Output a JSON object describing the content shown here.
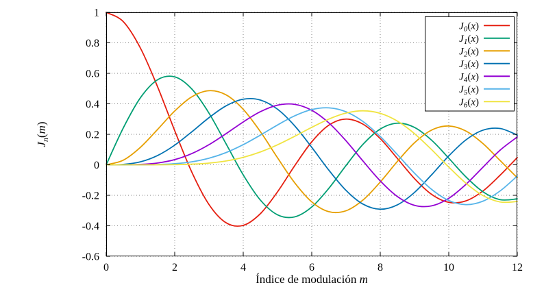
{
  "chart_data": {
    "type": "line",
    "title": "",
    "xlabel": "Índice de modulación m",
    "ylabel": "J_n(m)",
    "xlabel_parts": [
      {
        "t": "Índice de modulación ",
        "i": 0,
        "s": 0
      },
      {
        "t": "m",
        "i": 1,
        "s": 0
      }
    ],
    "ylabel_parts": [
      {
        "t": "J",
        "i": 1,
        "s": 0
      },
      {
        "t": "n",
        "i": 1,
        "s": 1
      },
      {
        "t": "(",
        "i": 0,
        "s": 0
      },
      {
        "t": "m",
        "i": 1,
        "s": 0
      },
      {
        "t": ")",
        "i": 0,
        "s": 0
      }
    ],
    "xlim": [
      0,
      12
    ],
    "ylim": [
      -0.6,
      1
    ],
    "x_ticks": [
      0,
      2,
      4,
      6,
      8,
      10,
      12
    ],
    "x_tick_labels": [
      "0",
      "2",
      "4",
      "6",
      "8",
      "10",
      "12"
    ],
    "y_ticks": [
      -0.6,
      -0.4,
      -0.2,
      0,
      0.2,
      0.4,
      0.6,
      0.8,
      1
    ],
    "y_tick_labels": [
      "-0.6",
      "-0.4",
      "-0.2",
      "0",
      "0.2",
      "0.4",
      "0.6",
      "0.8",
      "1"
    ],
    "grid": "dotted",
    "legend_position": "top-right",
    "x_start": 0,
    "x_step": 0.5,
    "colors": {
      "grid": "#7f7f7f",
      "axis": "#000000",
      "background": "#ffffff"
    },
    "series": [
      {
        "name": "J0",
        "label": "J_0(x)",
        "color": "#e51e10",
        "label_parts": [
          {
            "t": "J",
            "i": 1,
            "s": 0
          },
          {
            "t": "0",
            "i": 1,
            "s": 1
          },
          {
            "t": "(",
            "i": 0,
            "s": 0
          },
          {
            "t": "x",
            "i": 1,
            "s": 0
          },
          {
            "t": ")",
            "i": 0,
            "s": 0
          }
        ],
        "values": [
          1.0,
          0.9385,
          0.7652,
          0.5118,
          0.2239,
          -0.0484,
          -0.2601,
          -0.3801,
          -0.3971,
          -0.3205,
          -0.1776,
          -0.0068,
          0.1506,
          0.2601,
          0.3001,
          0.2663,
          0.1717,
          0.0419,
          -0.0903,
          -0.1939,
          -0.2459,
          -0.2366,
          -0.1712,
          -0.0677,
          0.0477
        ]
      },
      {
        "name": "J1",
        "label": "J_1(x)",
        "color": "#009e73",
        "label_parts": [
          {
            "t": "J",
            "i": 1,
            "s": 0
          },
          {
            "t": "1",
            "i": 1,
            "s": 1
          },
          {
            "t": "(",
            "i": 0,
            "s": 0
          },
          {
            "t": "x",
            "i": 1,
            "s": 0
          },
          {
            "t": ")",
            "i": 0,
            "s": 0
          }
        ],
        "values": [
          0,
          0.2423,
          0.4401,
          0.5579,
          0.5767,
          0.4971,
          0.3391,
          0.1374,
          -0.066,
          -0.2311,
          -0.3276,
          -0.3414,
          -0.2767,
          -0.1538,
          -0.0047,
          0.1352,
          0.2346,
          0.2731,
          0.2453,
          0.1613,
          0.0435,
          -0.0789,
          -0.1768,
          -0.2284,
          -0.2234
        ]
      },
      {
        "name": "J2",
        "label": "J_2(x)",
        "color": "#e69f00",
        "label_parts": [
          {
            "t": "J",
            "i": 1,
            "s": 0
          },
          {
            "t": "2",
            "i": 1,
            "s": 1
          },
          {
            "t": "(",
            "i": 0,
            "s": 0
          },
          {
            "t": "x",
            "i": 1,
            "s": 0
          },
          {
            "t": ")",
            "i": 0,
            "s": 0
          }
        ],
        "values": [
          0,
          0.0306,
          0.1149,
          0.2321,
          0.3528,
          0.4461,
          0.4861,
          0.4586,
          0.3641,
          0.2178,
          0.0466,
          -0.1173,
          -0.2429,
          -0.3074,
          -0.3014,
          -0.2303,
          -0.113,
          0.0223,
          0.1448,
          0.2279,
          0.2546,
          0.2216,
          0.139,
          0.0279,
          -0.0849
        ]
      },
      {
        "name": "J3",
        "label": "J_3(x)",
        "color": "#0072b2",
        "label_parts": [
          {
            "t": "J",
            "i": 1,
            "s": 0
          },
          {
            "t": "3",
            "i": 1,
            "s": 1
          },
          {
            "t": "(",
            "i": 0,
            "s": 0
          },
          {
            "t": "x",
            "i": 1,
            "s": 0
          },
          {
            "t": ")",
            "i": 0,
            "s": 0
          }
        ],
        "values": [
          0,
          0.0026,
          0.0196,
          0.061,
          0.1289,
          0.2166,
          0.3091,
          0.3868,
          0.4302,
          0.4247,
          0.3648,
          0.2561,
          0.1148,
          -0.0353,
          -0.1676,
          -0.2581,
          -0.2911,
          -0.2626,
          -0.1809,
          -0.0653,
          0.0584,
          0.1633,
          0.2273,
          0.2381,
          0.1951
        ]
      },
      {
        "name": "J4",
        "label": "J_4(x)",
        "color": "#9400d3",
        "label_parts": [
          {
            "t": "J",
            "i": 1,
            "s": 0
          },
          {
            "t": "4",
            "i": 1,
            "s": 1
          },
          {
            "t": "(",
            "i": 0,
            "s": 0
          },
          {
            "t": "x",
            "i": 1,
            "s": 0
          },
          {
            "t": ")",
            "i": 0,
            "s": 0
          }
        ],
        "values": [
          0,
          0.0002,
          0.0025,
          0.0118,
          0.034,
          0.0738,
          0.132,
          0.2044,
          0.2811,
          0.3484,
          0.3912,
          0.3967,
          0.3576,
          0.2748,
          0.1578,
          0.0238,
          -0.1054,
          -0.2077,
          -0.2655,
          -0.2691,
          -0.2196,
          -0.1283,
          -0.015,
          0.0963,
          0.1825
        ]
      },
      {
        "name": "J5",
        "label": "J_5(x)",
        "color": "#56b4e9",
        "label_parts": [
          {
            "t": "J",
            "i": 1,
            "s": 0
          },
          {
            "t": "5",
            "i": 1,
            "s": 1
          },
          {
            "t": "(",
            "i": 0,
            "s": 0
          },
          {
            "t": "x",
            "i": 1,
            "s": 0
          },
          {
            "t": ")",
            "i": 0,
            "s": 0
          }
        ],
        "values": [
          0,
          0.0,
          0.0002,
          0.0018,
          0.007,
          0.0195,
          0.043,
          0.0804,
          0.1321,
          0.1947,
          0.2611,
          0.3209,
          0.3621,
          0.3736,
          0.3479,
          0.2835,
          0.1858,
          0.0671,
          -0.055,
          -0.1613,
          -0.2341,
          -0.2611,
          -0.2383,
          -0.1711,
          -0.0735
        ]
      },
      {
        "name": "J6",
        "label": "J_6(x)",
        "color": "#f0e442",
        "label_parts": [
          {
            "t": "J",
            "i": 1,
            "s": 0
          },
          {
            "t": "6",
            "i": 1,
            "s": 1
          },
          {
            "t": "(",
            "i": 0,
            "s": 0
          },
          {
            "t": "x",
            "i": 1,
            "s": 0
          },
          {
            "t": ")",
            "i": 0,
            "s": 0
          }
        ],
        "values": [
          0,
          0.0,
          0.0,
          0.0002,
          0.0012,
          0.0042,
          0.0114,
          0.0254,
          0.0491,
          0.0843,
          0.131,
          0.1868,
          0.2458,
          0.2999,
          0.3392,
          0.3541,
          0.3376,
          0.2867,
          0.2043,
          0.0993,
          -0.0145,
          -0.1203,
          -0.2016,
          -0.2437,
          -0.2406
        ]
      }
    ]
  }
}
